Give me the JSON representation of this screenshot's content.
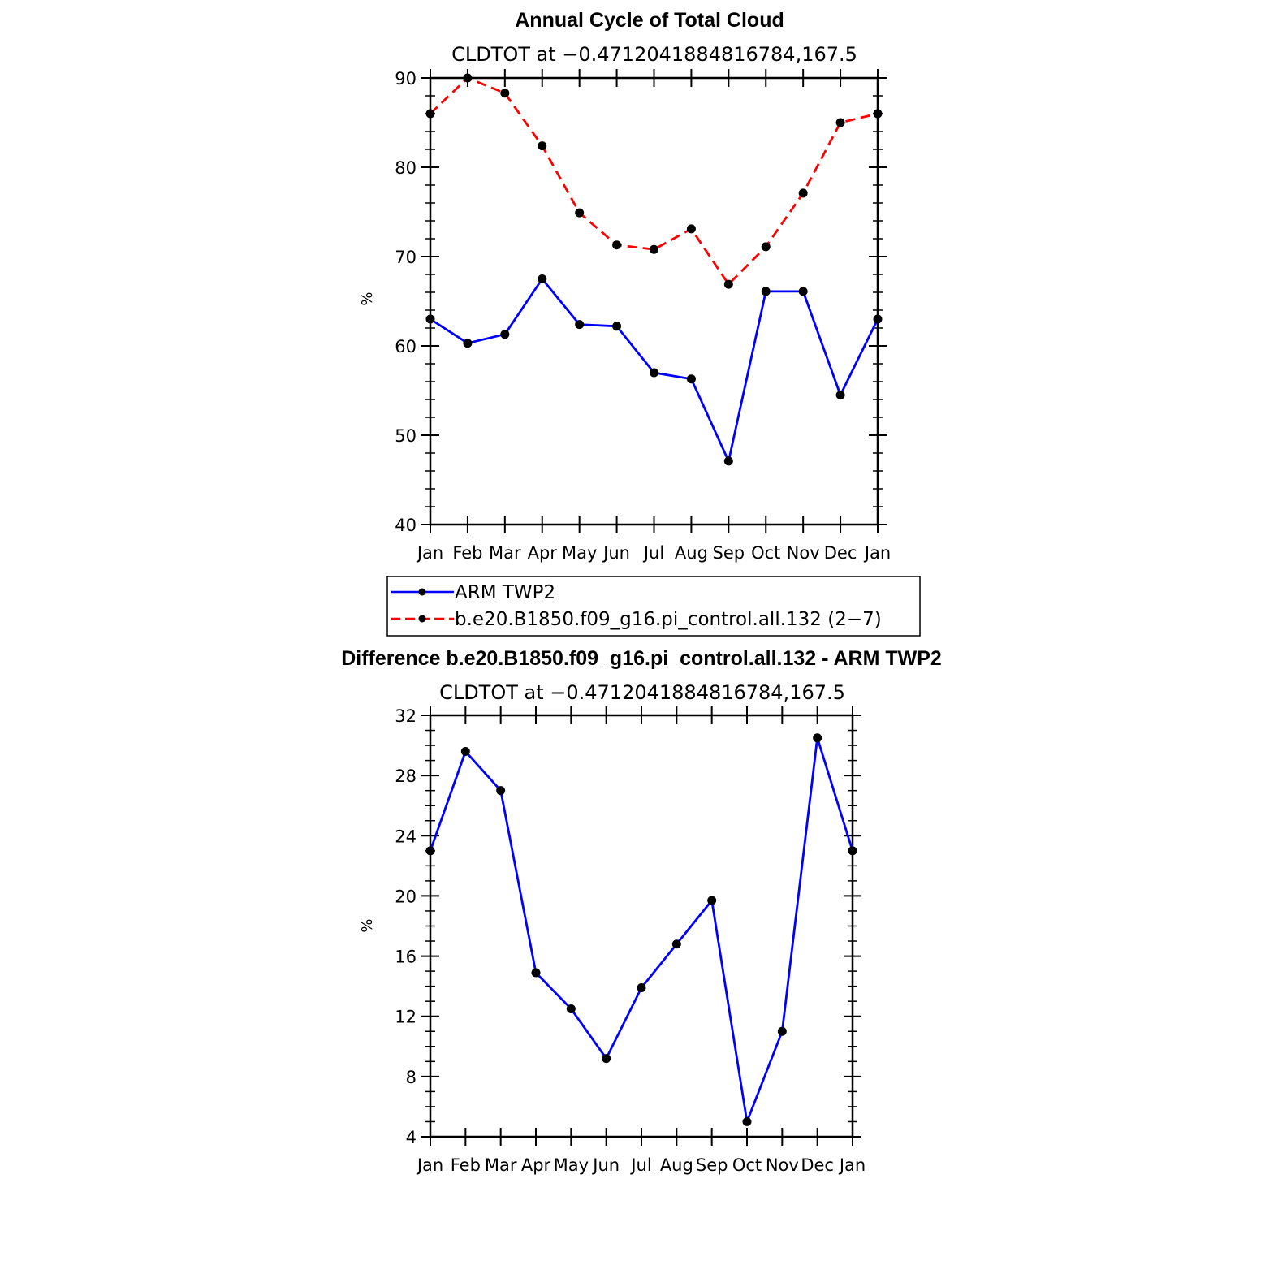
{
  "chart_data": [
    {
      "type": "line",
      "title": "Annual Cycle of Total Cloud",
      "subtitle": "CLDTOT at −0.4712041884816784,167.5",
      "xlabel": "",
      "ylabel": "%",
      "categories": [
        "Jan",
        "Feb",
        "Mar",
        "Apr",
        "May",
        "Jun",
        "Jul",
        "Aug",
        "Sep",
        "Oct",
        "Nov",
        "Dec",
        "Jan"
      ],
      "ylim": [
        40,
        90
      ],
      "y_ticks": [
        40,
        50,
        60,
        70,
        80,
        90
      ],
      "y_minor_step": 2,
      "grid": false,
      "legend_position": "bottom",
      "series": [
        {
          "name": "ARM TWP2",
          "color": "#0000ff",
          "style": "solid",
          "values": [
            63.0,
            60.3,
            61.3,
            67.5,
            62.4,
            62.2,
            57.0,
            56.3,
            47.1,
            66.1,
            66.1,
            54.5,
            63.0
          ]
        },
        {
          "name": "b.e20.B1850.f09_g16.pi_control.all.132 (2−7)",
          "color": "#ff0000",
          "style": "dashed",
          "values": [
            86.0,
            90.0,
            88.3,
            82.4,
            74.9,
            71.3,
            70.8,
            73.1,
            66.9,
            71.1,
            77.1,
            85.0,
            86.0
          ]
        }
      ]
    },
    {
      "type": "line",
      "title": "Difference b.e20.B1850.f09_g16.pi_control.all.132 - ARM TWP2",
      "subtitle": "CLDTOT at −0.4712041884816784,167.5",
      "xlabel": "",
      "ylabel": "%",
      "categories": [
        "Jan",
        "Feb",
        "Mar",
        "Apr",
        "May",
        "Jun",
        "Jul",
        "Aug",
        "Sep",
        "Oct",
        "Nov",
        "Dec",
        "Jan"
      ],
      "ylim": [
        4,
        32
      ],
      "y_ticks": [
        4,
        8,
        12,
        16,
        20,
        24,
        28,
        32
      ],
      "y_minor_step": 1,
      "grid": false,
      "series": [
        {
          "name": "Difference",
          "color": "#0000ff",
          "style": "solid",
          "values": [
            23.0,
            29.6,
            27.0,
            14.9,
            12.5,
            9.2,
            13.9,
            16.8,
            19.7,
            5.0,
            11.0,
            30.5,
            23.0
          ]
        }
      ]
    }
  ]
}
